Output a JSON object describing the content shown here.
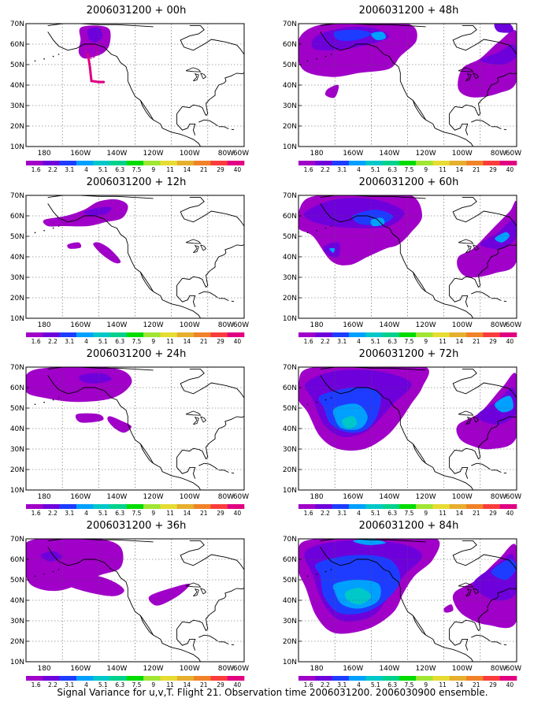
{
  "caption": "Signal Variance for u,v,T. Flight 21. Observation time 2006031200. 2006030900 ensemble.",
  "lat_labels": [
    "70N",
    "60N",
    "50N",
    "40N",
    "30N",
    "20N",
    "10N"
  ],
  "lon_labels": [
    "180",
    "160W",
    "140W",
    "120W",
    "100W",
    "80W",
    "60W"
  ],
  "colorbar": {
    "levels": [
      "1.6",
      "2.2",
      "3.1",
      "4",
      "5.1",
      "6.3",
      "7.5",
      "9",
      "11",
      "14",
      "21",
      "29",
      "40"
    ],
    "colors": [
      "#a000c8",
      "#6e00dc",
      "#1e3cff",
      "#00a0ff",
      "#00c8c8",
      "#00d28c",
      "#00dc00",
      "#a0e632",
      "#e6dc32",
      "#e6af2d",
      "#f08228",
      "#fa3c3c",
      "#e10082"
    ]
  },
  "panels": [
    {
      "title": "2006031200 + 00h"
    },
    {
      "title": "2006031200 + 12h"
    },
    {
      "title": "2006031200 + 24h"
    },
    {
      "title": "2006031200 + 36h"
    },
    {
      "title": "2006031200 + 48h"
    },
    {
      "title": "2006031200 + 60h"
    },
    {
      "title": "2006031200 + 72h"
    },
    {
      "title": "2006031200 + 84h"
    }
  ]
}
